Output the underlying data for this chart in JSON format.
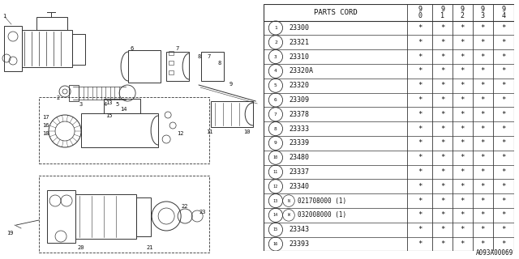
{
  "diagram_id": "A093A00069",
  "bg_color": "#ffffff",
  "line_color": "#333333",
  "text_color": "#111111",
  "header_label": "PARTS CORD",
  "year_cols": [
    "9\n0",
    "9\n1",
    "9\n2",
    "9\n3",
    "9\n4"
  ],
  "rows": [
    {
      "num": "1",
      "code": "23300",
      "stars": [
        "*",
        "*",
        "*",
        "*",
        "*"
      ]
    },
    {
      "num": "2",
      "code": "23321",
      "stars": [
        "*",
        "*",
        "*",
        "*",
        "*"
      ]
    },
    {
      "num": "3",
      "code": "23310",
      "stars": [
        "*",
        "*",
        "*",
        "*",
        "*"
      ]
    },
    {
      "num": "4",
      "code": "23320A",
      "stars": [
        "*",
        "*",
        "*",
        "*",
        "*"
      ]
    },
    {
      "num": "5",
      "code": "23320",
      "stars": [
        "*",
        "*",
        "*",
        "*",
        "*"
      ]
    },
    {
      "num": "6",
      "code": "23309",
      "stars": [
        "*",
        "*",
        "*",
        "*",
        "*"
      ]
    },
    {
      "num": "7",
      "code": "23378",
      "stars": [
        "*",
        "*",
        "*",
        "*",
        "*"
      ]
    },
    {
      "num": "8",
      "code": "23333",
      "stars": [
        "*",
        "*",
        "*",
        "*",
        "*"
      ]
    },
    {
      "num": "9",
      "code": "23339",
      "stars": [
        "*",
        "*",
        "*",
        "*",
        "*"
      ]
    },
    {
      "num": "10",
      "code": "23480",
      "stars": [
        "*",
        "*",
        "*",
        "*",
        "*"
      ]
    },
    {
      "num": "11",
      "code": "23337",
      "stars": [
        "*",
        "*",
        "*",
        "*",
        "*"
      ]
    },
    {
      "num": "12",
      "code": "23340",
      "stars": [
        "*",
        "*",
        "*",
        "*",
        "*"
      ]
    },
    {
      "num": "13",
      "code": "N021708000 (1)",
      "stars": [
        "*",
        "*",
        "*",
        "*",
        "*"
      ]
    },
    {
      "num": "14",
      "code": "W032008000 (1)",
      "stars": [
        "*",
        "*",
        "*",
        "*",
        "*"
      ]
    },
    {
      "num": "15",
      "code": "23343",
      "stars": [
        "*",
        "*",
        "*",
        "*",
        "*"
      ]
    },
    {
      "num": "16",
      "code": "23393",
      "stars": [
        "*",
        "*",
        "*",
        "*",
        "*"
      ]
    }
  ]
}
